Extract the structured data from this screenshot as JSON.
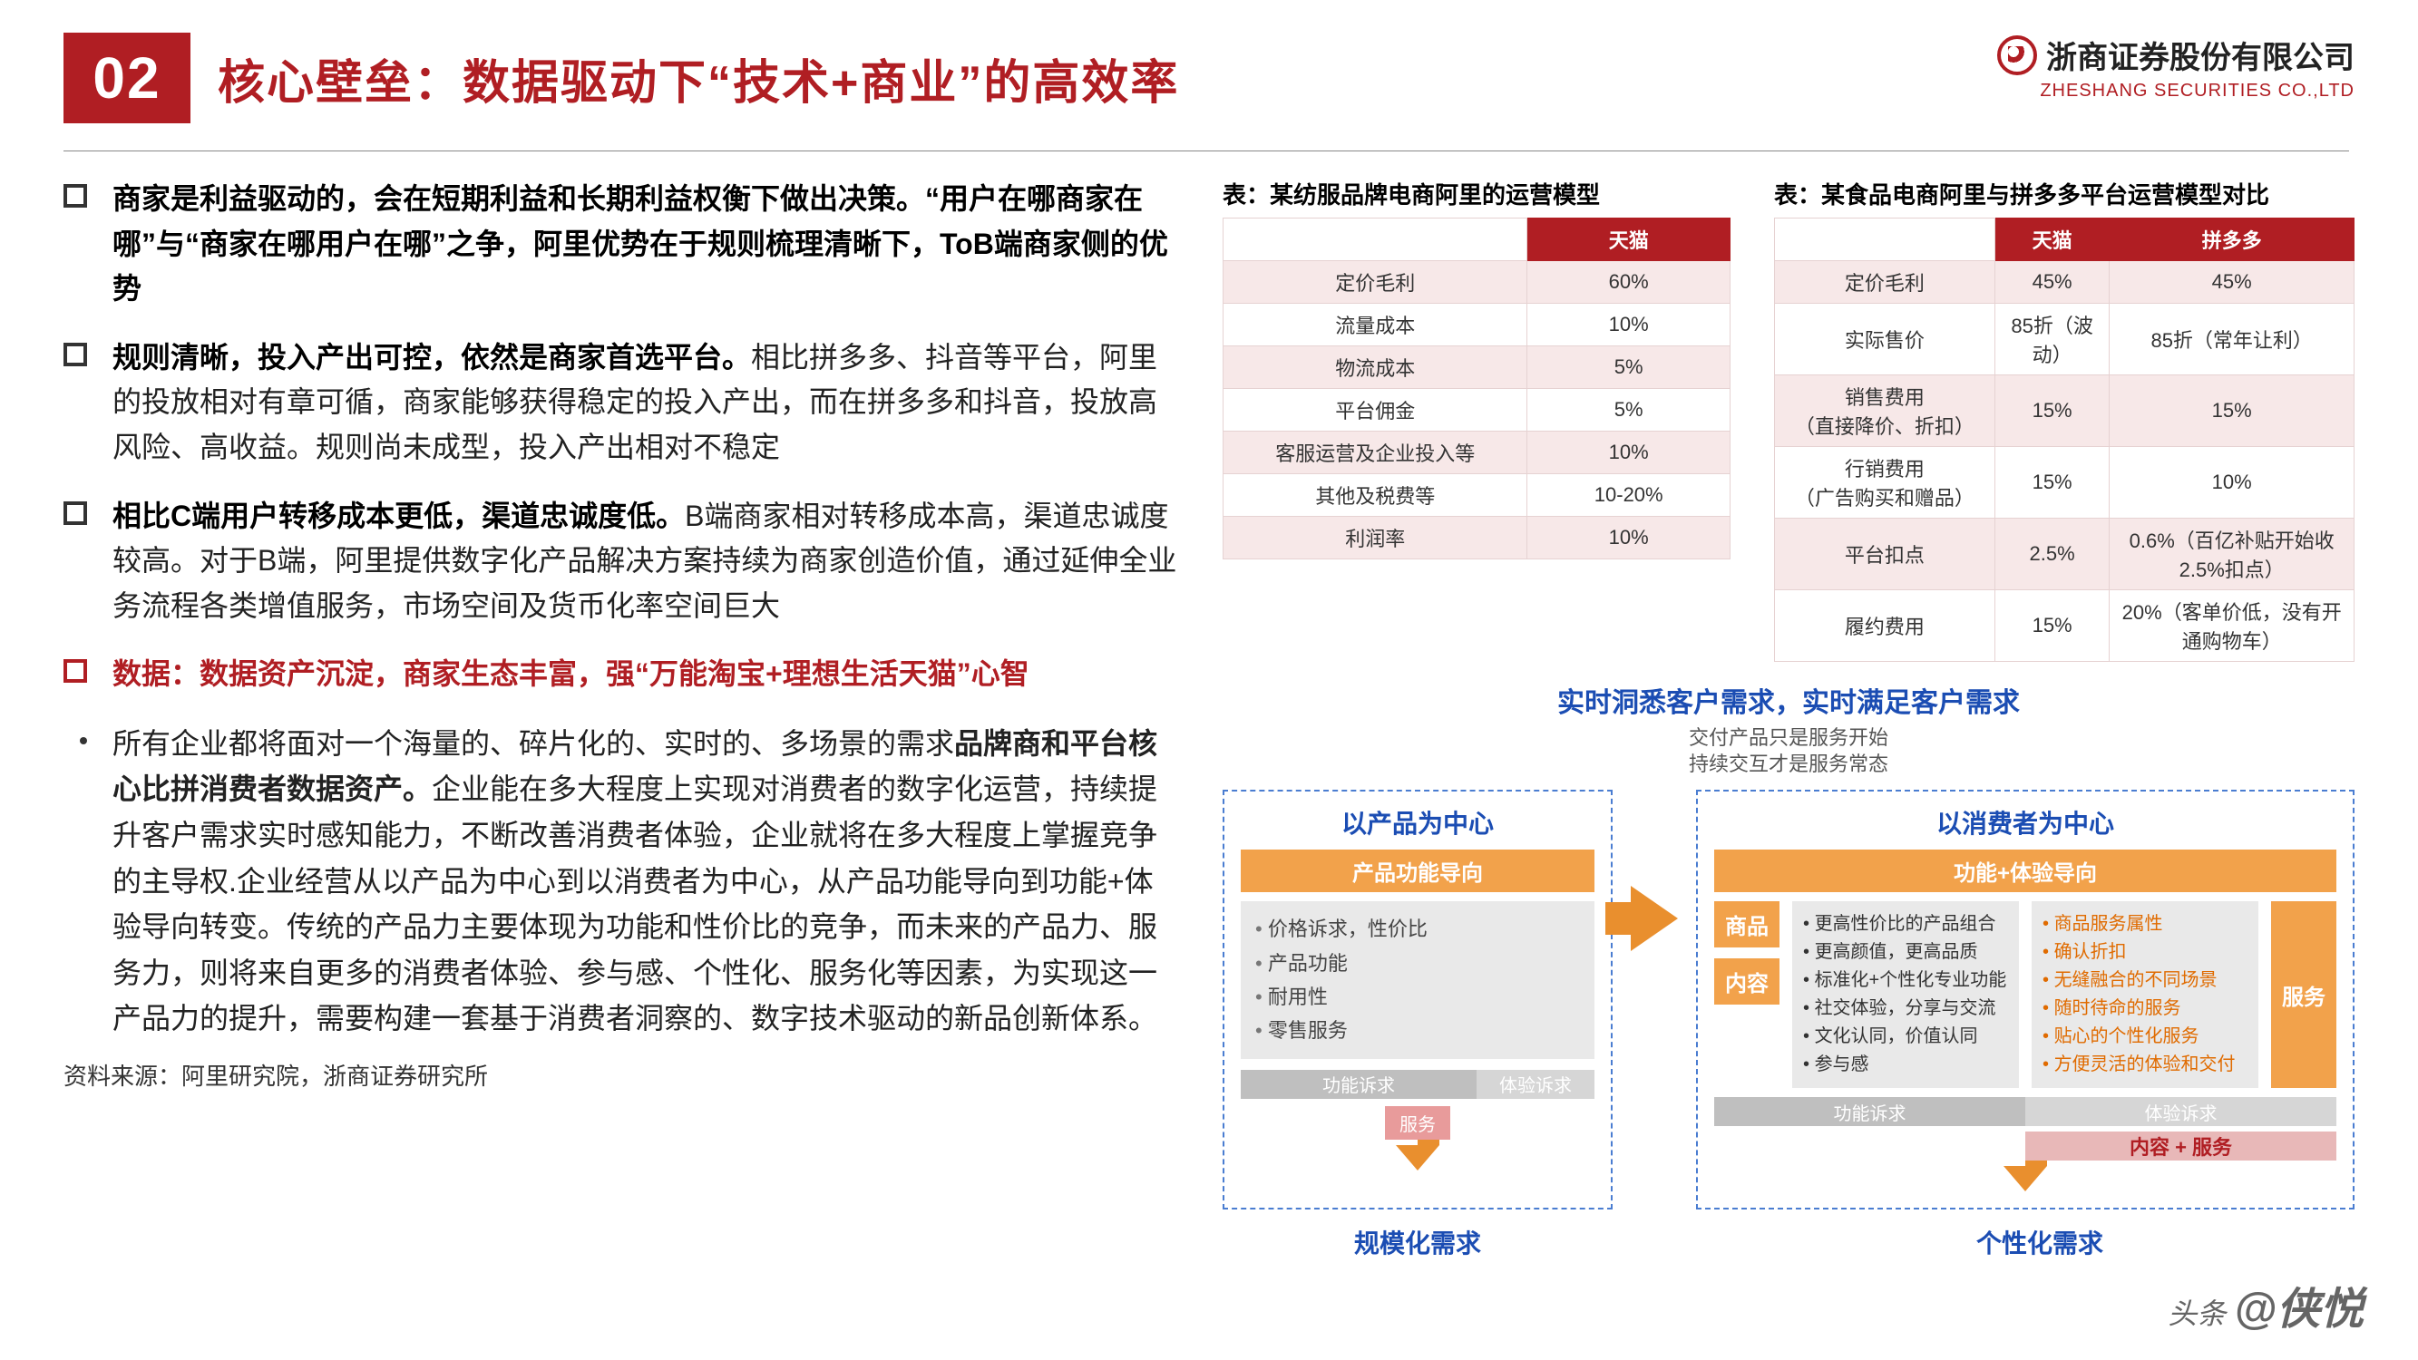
{
  "header": {
    "number": "02",
    "title": "核心壁垒：数据驱动下“技术+商业”的高效率",
    "company_cn": "浙商证券股份有限公司",
    "company_en": "ZHESHANG SECURITIES CO.,LTD"
  },
  "bullets": [
    {
      "bold": "商家是利益驱动的，会在短期利益和长期利益权衡下做出决策。“用户在哪商家在哪”与“商家在哪用户在哪”之争，阿里优势在于规则梳理清晰下，ToB端商家侧的优势",
      "normal": ""
    },
    {
      "bold": "规则清晰，投入产出可控，依然是商家首选平台。",
      "normal": "相比拼多多、抖音等平台，阿里的投放相对有章可循，商家能够获得稳定的投入产出，而在拼多多和抖音，投放高风险、高收益。规则尚未成型，投入产出相对不稳定"
    },
    {
      "bold": "相比C端用户转移成本更低，渠道忠诚度低。",
      "normal": "B端商家相对转移成本高，渠道忠诚度较高。对于B端，阿里提供数字化产品解决方案持续为商家创造价值，通过延伸全业务流程各类增值服务，市场空间及货币化率空间巨大"
    }
  ],
  "red_bullet": "数据：数据资产沉淀，商家生态丰富，强“万能淘宝+理想生活天猫”心智",
  "sub_bullet": {
    "pre": "所有企业都将面对一个海量的、碎片化的、实时的、多场景的需求",
    "bold": "品牌商和平台核心比拼消费者数据资产。",
    "post": "企业能在多大程度上实现对消费者的数字化运营，持续提升客户需求实时感知能力，不断改善消费者体验，企业就将在多大程度上掌握竞争的主导权.企业经营从以产品为中心到以消费者为中心，从产品功能导向到功能+体验导向转变。传统的产品力主要体现为功能和性价比的竞争，而未来的产品力、服务力，则将来自更多的消费者体验、参与感、个性化、服务化等因素，为实现这一产品力的提升，需要构建一套基于消费者洞察的、数字技术驱动的新品创新体系。"
  },
  "source": "资料来源：阿里研究院，浙商证券研究所",
  "table1": {
    "title": "表：某纺服品牌电商阿里的运营模型",
    "header_col": "天猫",
    "rows": [
      [
        "定价毛利",
        "60%"
      ],
      [
        "流量成本",
        "10%"
      ],
      [
        "物流成本",
        "5%"
      ],
      [
        "平台佣金",
        "5%"
      ],
      [
        "客服运营及企业投入等",
        "10%"
      ],
      [
        "其他及税费等",
        "10-20%"
      ],
      [
        "利润率",
        "10%"
      ]
    ]
  },
  "table2": {
    "title": "表：某食品电商阿里与拼多多平台运营模型对比",
    "header_cols": [
      "天猫",
      "拼多多"
    ],
    "rows": [
      [
        "定价毛利",
        "45%",
        "45%"
      ],
      [
        "实际售价",
        "85折（波动）",
        "85折（常年让利）"
      ],
      [
        "销售费用\n（直接降价、折扣）",
        "15%",
        "15%"
      ],
      [
        "行销费用\n（广告购买和赠品）",
        "15%",
        "10%"
      ],
      [
        "平台扣点",
        "2.5%",
        "0.6%（百亿补贴开始收2.5%扣点）"
      ],
      [
        "履约费用",
        "15%",
        "20%（客单价低，没有开通购物车）"
      ]
    ]
  },
  "diagram": {
    "title": "实时洞悉客户需求，实时满足客户需求",
    "sub1": "交付产品只是服务开始",
    "sub2": "持续交互才是服务常态",
    "left_box_title": "以产品为中心",
    "right_box_title": "以消费者为中心",
    "left_bar": "产品功能导向",
    "right_bar": "功能+体验导向",
    "left_items": [
      "价格诉求，性价比",
      "产品功能",
      "耐用性",
      "零售服务"
    ],
    "side_labels": [
      "商品",
      "内容",
      "服务"
    ],
    "right_items_col1": [
      "更高性价比的产品组合",
      "更高颜值，更高品质",
      "标准化+个性化专业功能",
      "社交体验，分享与交流",
      "文化认同，价值认同",
      "参与感"
    ],
    "right_items_col2": [
      "商品服务属性",
      "确认折扣",
      "无缝融合的不同场景",
      "随时待命的服务",
      "贴心的个性化服务",
      "方便灵活的体验和交付"
    ],
    "left_split": {
      "labels": [
        "功能诉求",
        "体验诉求"
      ],
      "service_tag": "服务"
    },
    "right_split": {
      "labels": [
        "功能诉求",
        "体验诉求"
      ],
      "tag": "内容 + 服务"
    },
    "bottom_left": "规模化需求",
    "bottom_right": "个性化需求"
  },
  "watermark": {
    "prefix": "头条 ",
    "handle": "@侠悦"
  },
  "colors": {
    "brand_red": "#b01e23",
    "orange": "#f2a24b",
    "blue": "#1b4db3",
    "table_stripe": "#f7e8e8",
    "table_border": "#e6d2d2",
    "gray_card": "#e9e9e9"
  }
}
